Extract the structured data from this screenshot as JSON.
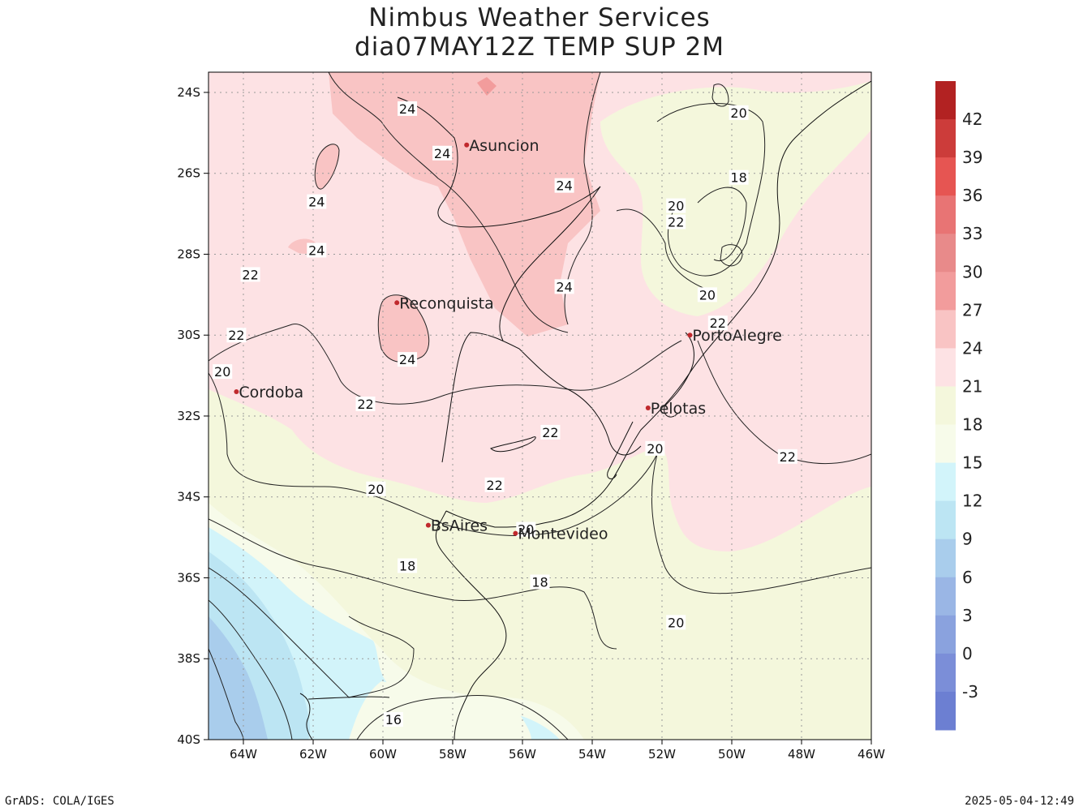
{
  "title": {
    "line1": "Nimbus Weather Services",
    "line2": "dia07MAY12Z TEMP SUP 2M"
  },
  "footer": {
    "left": "GrADS: COLA/IGES",
    "right": "2025-05-04-12:49"
  },
  "map": {
    "lon_range": [
      -65,
      -46
    ],
    "lat_range": [
      -40,
      -23.5
    ],
    "lon_ticks": [
      {
        "value": -64,
        "label": "64W"
      },
      {
        "value": -62,
        "label": "62W"
      },
      {
        "value": -60,
        "label": "60W"
      },
      {
        "value": -58,
        "label": "58W"
      },
      {
        "value": -56,
        "label": "56W"
      },
      {
        "value": -54,
        "label": "54W"
      },
      {
        "value": -52,
        "label": "52W"
      },
      {
        "value": -50,
        "label": "50W"
      },
      {
        "value": -48,
        "label": "48W"
      },
      {
        "value": -46,
        "label": "46W"
      }
    ],
    "lat_ticks": [
      {
        "value": -24,
        "label": "24S"
      },
      {
        "value": -26,
        "label": "26S"
      },
      {
        "value": -28,
        "label": "28S"
      },
      {
        "value": -30,
        "label": "30S"
      },
      {
        "value": -32,
        "label": "32S"
      },
      {
        "value": -34,
        "label": "34S"
      },
      {
        "value": -36,
        "label": "36S"
      },
      {
        "value": -38,
        "label": "38S"
      },
      {
        "value": -40,
        "label": "40S"
      }
    ],
    "cities": [
      {
        "name": "Asuncion",
        "lon": -57.6,
        "lat": -25.3
      },
      {
        "name": "Reconquista",
        "lon": -59.6,
        "lat": -29.2
      },
      {
        "name": "PortoAlegre",
        "lon": -51.2,
        "lat": -30.0
      },
      {
        "name": "Cordoba",
        "lon": -64.2,
        "lat": -31.4
      },
      {
        "name": "Pelotas",
        "lon": -52.4,
        "lat": -31.8
      },
      {
        "name": "BsAires",
        "lon": -58.7,
        "lat": -34.7
      },
      {
        "name": "Montevideo",
        "lon": -56.2,
        "lat": -34.9
      }
    ],
    "contour_labels": [
      {
        "text": "24",
        "lon": -59.3,
        "lat": -24.4
      },
      {
        "text": "24",
        "lon": -58.3,
        "lat": -25.5
      },
      {
        "text": "24",
        "lon": -61.9,
        "lat": -26.7
      },
      {
        "text": "24",
        "lon": -61.9,
        "lat": -27.9
      },
      {
        "text": "24",
        "lon": -54.8,
        "lat": -26.3
      },
      {
        "text": "24",
        "lon": -54.8,
        "lat": -28.8
      },
      {
        "text": "24",
        "lon": -59.3,
        "lat": -30.6
      },
      {
        "text": "22",
        "lon": -63.8,
        "lat": -28.5
      },
      {
        "text": "22",
        "lon": -64.2,
        "lat": -30.0
      },
      {
        "text": "22",
        "lon": -60.5,
        "lat": -31.7
      },
      {
        "text": "22",
        "lon": -55.2,
        "lat": -32.4
      },
      {
        "text": "22",
        "lon": -56.8,
        "lat": -33.7
      },
      {
        "text": "22",
        "lon": -51.6,
        "lat": -27.2
      },
      {
        "text": "22",
        "lon": -50.4,
        "lat": -29.7
      },
      {
        "text": "22",
        "lon": -48.4,
        "lat": -33.0
      },
      {
        "text": "20",
        "lon": -64.6,
        "lat": -30.9
      },
      {
        "text": "20",
        "lon": -60.2,
        "lat": -33.8
      },
      {
        "text": "20",
        "lon": -55.9,
        "lat": -34.8
      },
      {
        "text": "20",
        "lon": -52.2,
        "lat": -32.8
      },
      {
        "text": "20",
        "lon": -51.6,
        "lat": -26.8
      },
      {
        "text": "20",
        "lon": -49.8,
        "lat": -24.5
      },
      {
        "text": "20",
        "lon": -50.7,
        "lat": -29.0
      },
      {
        "text": "20",
        "lon": -51.6,
        "lat": -37.1
      },
      {
        "text": "18",
        "lon": -49.8,
        "lat": -26.1
      },
      {
        "text": "18",
        "lon": -59.3,
        "lat": -35.7
      },
      {
        "text": "18",
        "lon": -55.5,
        "lat": -36.1
      },
      {
        "text": "16",
        "lon": -59.7,
        "lat": -39.5
      }
    ]
  },
  "colorbar": {
    "labels": [
      "42",
      "39",
      "36",
      "33",
      "30",
      "27",
      "24",
      "21",
      "18",
      "15",
      "12",
      "9",
      "6",
      "3",
      "0",
      "-3"
    ],
    "colors": [
      "#b22222",
      "#cc3c3a",
      "#e65552",
      "#e87474",
      "#e88a8a",
      "#f29c9c",
      "#f9c4c4",
      "#fde2e4",
      "#f4f7dc",
      "#f7fbea",
      "#d2f4fa",
      "#bce5f3",
      "#a9cdec",
      "#9ab6e5",
      "#8aa2de",
      "#7b8ed8",
      "#6c7fd2"
    ]
  },
  "palette": {
    "t24": "#f9c4c4",
    "t21": "#fde2e4",
    "t18": "#f4f7dc",
    "t15": "#f7fbea",
    "t12": "#d2f4fa",
    "t9": "#bce5f3",
    "t6": "#a9cdec",
    "t27": "#f29c9c"
  }
}
